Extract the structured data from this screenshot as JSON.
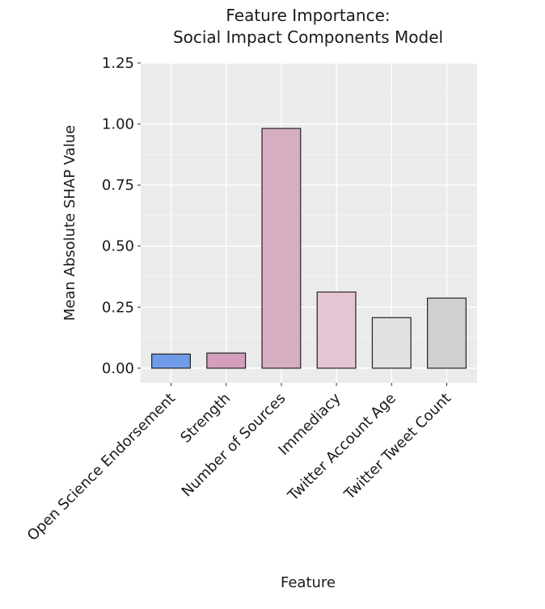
{
  "chart_data": {
    "type": "bar",
    "title_lines": [
      "Feature Importance:",
      "Social Impact Components Model"
    ],
    "xlabel": "Feature",
    "ylabel": "Mean Absolute SHAP Value",
    "ylim": [
      -0.06,
      1.25
    ],
    "yticks": [
      0.0,
      0.25,
      0.5,
      0.75,
      1.0,
      1.25
    ],
    "ytick_labels": [
      "0.00",
      "0.25",
      "0.50",
      "0.75",
      "1.00",
      "1.25"
    ],
    "grid": true,
    "categories": [
      "Open Science Endorsement",
      "Strength",
      "Number of Sources",
      "Immediacy",
      "Twitter Account Age",
      "Twitter Tweet Count"
    ],
    "values": [
      0.058,
      0.062,
      0.982,
      0.312,
      0.207,
      0.287
    ],
    "bar_colors": [
      "#6f9be8",
      "#d59fbb",
      "#d5aec1",
      "#e5c5d4",
      "#e2e0e1",
      "#d1cfd0"
    ],
    "colors": {
      "panel_bg": "#ebebeb",
      "grid": "#ffffff",
      "bar_edge": "#222222",
      "text": "#1a1a1a"
    }
  }
}
